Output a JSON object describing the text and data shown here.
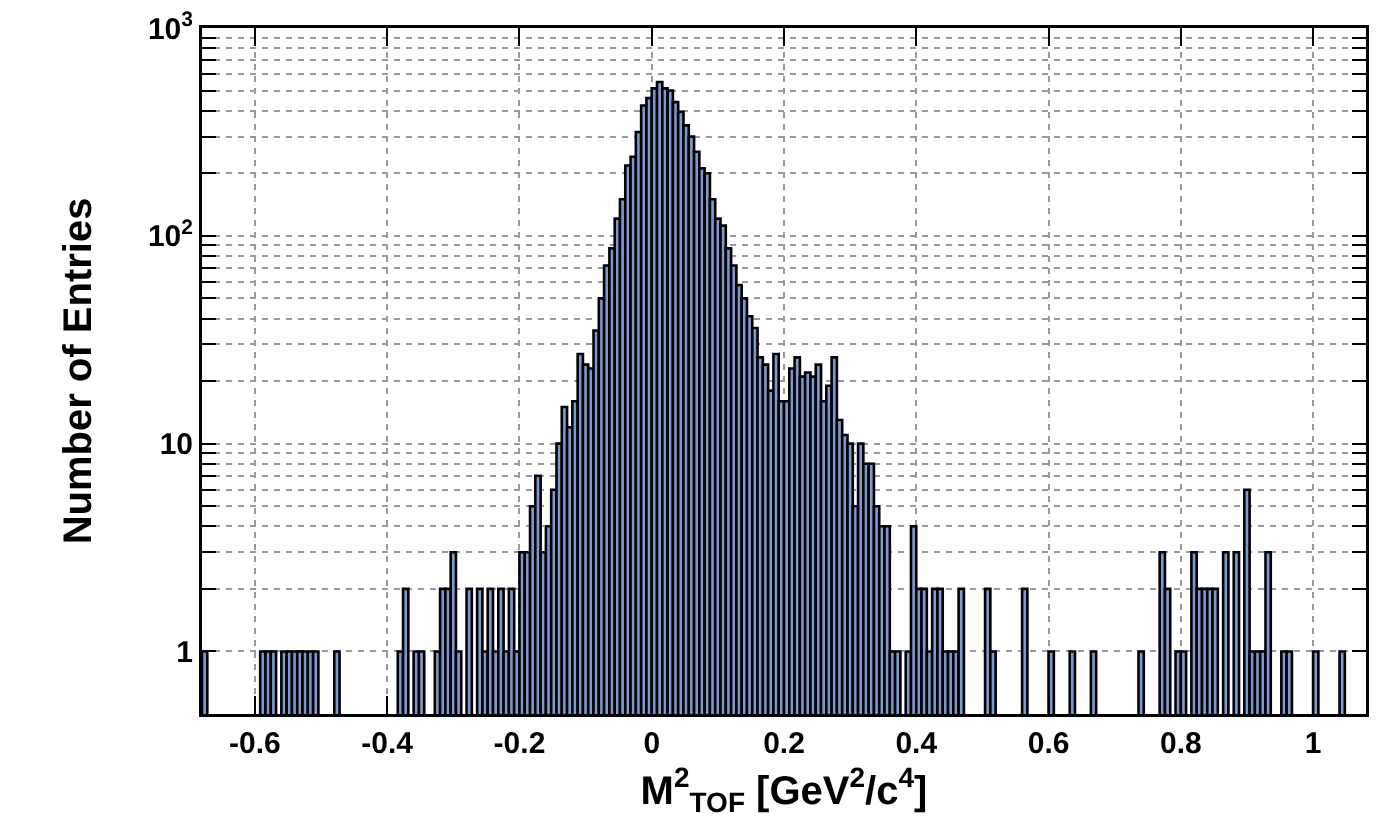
{
  "chart_data": {
    "type": "histogram",
    "xlabel": "M$^{2}$$_{TOF}$ [GeV$^{2}$/c$^{4}$]",
    "ylabel": "Number of Entries",
    "color": "#7b98d0",
    "log": "y",
    "grid": true,
    "bins": [
      -0.68,
      -0.672,
      -0.664,
      -0.656,
      -0.648,
      -0.64,
      -0.632,
      -0.624,
      -0.616,
      -0.608,
      -0.6,
      -0.592,
      -0.584,
      -0.576,
      -0.568,
      -0.56,
      -0.552,
      -0.544,
      -0.536,
      -0.528,
      -0.52,
      -0.512,
      -0.504,
      -0.496,
      -0.488,
      -0.48,
      -0.472,
      -0.464,
      -0.456,
      -0.448,
      -0.44,
      -0.432,
      -0.424,
      -0.416,
      -0.408,
      -0.4,
      -0.392,
      -0.384,
      -0.376,
      -0.368,
      -0.36,
      -0.352,
      -0.344,
      -0.336,
      -0.328,
      -0.32,
      -0.312,
      -0.304,
      -0.296,
      -0.288,
      -0.28,
      -0.272,
      -0.264,
      -0.256,
      -0.248,
      -0.24,
      -0.232,
      -0.224,
      -0.216,
      -0.208,
      -0.2,
      -0.192,
      -0.184,
      -0.176,
      -0.168,
      -0.16,
      -0.152,
      -0.144,
      -0.136,
      -0.128,
      -0.12,
      -0.112,
      -0.104,
      -0.096,
      -0.088,
      -0.08,
      -0.072,
      -0.064,
      -0.056,
      -0.048,
      -0.04,
      -0.032,
      -0.024,
      -0.016,
      -0.008,
      0,
      0.008,
      0.016,
      0.024,
      0.032,
      0.04,
      0.048,
      0.056,
      0.064,
      0.072,
      0.08,
      0.088,
      0.096,
      0.104,
      0.112,
      0.12,
      0.128,
      0.136,
      0.144,
      0.152,
      0.16,
      0.168,
      0.176,
      0.184,
      0.192,
      0.2,
      0.208,
      0.216,
      0.224,
      0.232,
      0.24,
      0.248,
      0.256,
      0.264,
      0.272,
      0.28,
      0.288,
      0.296,
      0.304,
      0.312,
      0.32,
      0.328,
      0.336,
      0.344,
      0.352,
      0.36,
      0.368,
      0.376,
      0.384,
      0.392,
      0.4,
      0.408,
      0.416,
      0.424,
      0.432,
      0.44,
      0.448,
      0.456,
      0.464,
      0.472,
      0.48,
      0.488,
      0.496,
      0.504,
      0.512,
      0.52,
      0.528,
      0.536,
      0.544,
      0.552,
      0.56,
      0.568,
      0.576,
      0.584,
      0.592,
      0.6,
      0.608,
      0.616,
      0.624,
      0.632,
      0.64,
      0.648,
      0.656,
      0.664,
      0.672,
      0.68,
      0.688,
      0.696,
      0.704,
      0.712,
      0.72,
      0.728,
      0.736,
      0.744,
      0.752,
      0.76,
      0.768,
      0.776,
      0.784,
      0.792,
      0.8,
      0.808,
      0.816,
      0.824,
      0.832,
      0.84,
      0.848,
      0.856,
      0.864,
      0.872,
      0.88,
      0.888,
      0.896,
      0.904,
      0.912,
      0.92,
      0.928,
      0.936,
      0.944,
      0.952,
      0.96,
      0.968,
      0.976,
      0.984,
      0.992,
      1,
      1.008,
      1.016,
      1.024,
      1.032,
      1.04,
      1.048,
      1.056,
      1.064,
      1.072,
      1.08
    ],
    "values": [
      1,
      null,
      null,
      null,
      null,
      null,
      null,
      null,
      null,
      null,
      null,
      1,
      1,
      1,
      null,
      1,
      1,
      1,
      1,
      1,
      1,
      1,
      null,
      null,
      null,
      1,
      null,
      null,
      null,
      null,
      null,
      null,
      null,
      null,
      null,
      null,
      null,
      1,
      2,
      null,
      1,
      1,
      null,
      null,
      1,
      2,
      2,
      3,
      1,
      null,
      2,
      null,
      2,
      1,
      2,
      1,
      2,
      1,
      2,
      1,
      3,
      3,
      5,
      7,
      3,
      4,
      6,
      10,
      15,
      12,
      16,
      27,
      24,
      23,
      35,
      50,
      72,
      87,
      121,
      150,
      218,
      240,
      316,
      424,
      460,
      512,
      550,
      512,
      500,
      440,
      395,
      340,
      300,
      254,
      211,
      200,
      150,
      121,
      112,
      87,
      72,
      58,
      50,
      41,
      36,
      26,
      24,
      18,
      27,
      16,
      16,
      23,
      26,
      21,
      22,
      21,
      24,
      16,
      19,
      26,
      13,
      11,
      10,
      5,
      10,
      8,
      8,
      5,
      4,
      4,
      1,
      1,
      null,
      1,
      4,
      2,
      2,
      1,
      2,
      2,
      1,
      1,
      1,
      2,
      null,
      null,
      null,
      null,
      2,
      1,
      null,
      null,
      null,
      null,
      null,
      2,
      null,
      null,
      null,
      null,
      1,
      null,
      null,
      null,
      1,
      null,
      null,
      null,
      1,
      null,
      null,
      null,
      null,
      null,
      null,
      null,
      null,
      1,
      null,
      null,
      null,
      3,
      2,
      null,
      1,
      1,
      null,
      3,
      2,
      2,
      2,
      2,
      null,
      3,
      null,
      3,
      null,
      6,
      1,
      1,
      1,
      3,
      null,
      null,
      1,
      1,
      null,
      null,
      null,
      null,
      1,
      null,
      null,
      null,
      null,
      1,
      null,
      null,
      null,
      null
    ],
    "xlim": [
      -0.68,
      1.08
    ],
    "xticks": [
      -0.6,
      -0.4,
      -0.2,
      0,
      0.2,
      0.4,
      0.6,
      0.8,
      1
    ],
    "ylim": [
      0.5,
      1000
    ],
    "yticks": [
      1,
      {
        "value": 2,
        "label": null
      },
      {
        "value": 3,
        "label": null
      },
      {
        "value": 4,
        "label": null
      },
      {
        "value": 5,
        "label": null
      },
      {
        "value": 6,
        "label": null
      },
      {
        "value": 7,
        "label": null
      },
      {
        "value": 8,
        "label": null
      },
      {
        "value": 9,
        "label": null
      },
      10,
      {
        "value": 20,
        "label": null
      },
      {
        "value": 30,
        "label": null
      },
      {
        "value": 40,
        "label": null
      },
      {
        "value": 50,
        "label": null
      },
      {
        "value": 60,
        "label": null
      },
      {
        "value": 70,
        "label": null
      },
      {
        "value": 80,
        "label": null
      },
      {
        "value": 90,
        "label": null
      },
      {
        "value": 100,
        "label": "10$^{2}$"
      },
      {
        "value": 200,
        "label": null
      },
      {
        "value": 300,
        "label": null
      },
      {
        "value": 400,
        "label": null
      },
      {
        "value": 500,
        "label": null
      },
      {
        "value": 600,
        "label": null
      },
      {
        "value": 700,
        "label": null
      },
      {
        "value": 800,
        "label": null
      },
      {
        "value": 900,
        "label": null
      },
      {
        "value": 1000,
        "label": "10$^{3}$"
      }
    ]
  }
}
